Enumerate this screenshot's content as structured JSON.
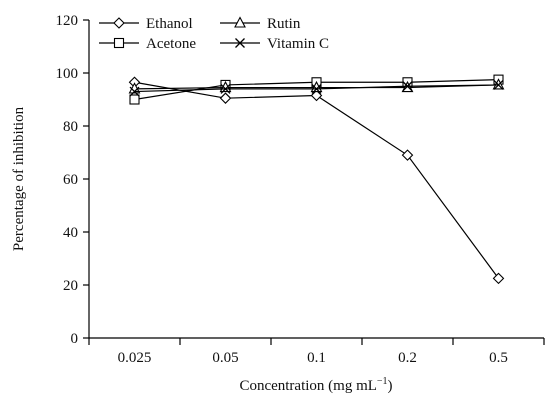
{
  "chart_data": {
    "type": "line",
    "categories": [
      "0.025",
      "0.05",
      "0.1",
      "0.2",
      "0.5"
    ],
    "ylabel": "Percentage of inhibition",
    "xlabel_main": "Concentration (mg mL",
    "xlabel_sup": "−1",
    "xlabel_end": ")",
    "ylim": [
      0,
      120
    ],
    "yticks": [
      0,
      20,
      40,
      60,
      80,
      100,
      120
    ],
    "grid": false,
    "legend_placement": "top-left",
    "series": [
      {
        "name": "Ethanol",
        "marker": "diamond",
        "values": [
          96.5,
          90.5,
          91.5,
          69,
          22.5
        ]
      },
      {
        "name": "Acetone",
        "marker": "square",
        "values": [
          90,
          95.5,
          96.5,
          96.5,
          97.5
        ]
      },
      {
        "name": "Rutin",
        "marker": "triangle",
        "values": [
          94,
          94.5,
          94.5,
          94.5,
          95.5
        ]
      },
      {
        "name": "Vitamin C",
        "marker": "cross",
        "values": [
          93,
          94,
          94,
          95,
          95.5
        ]
      }
    ]
  }
}
